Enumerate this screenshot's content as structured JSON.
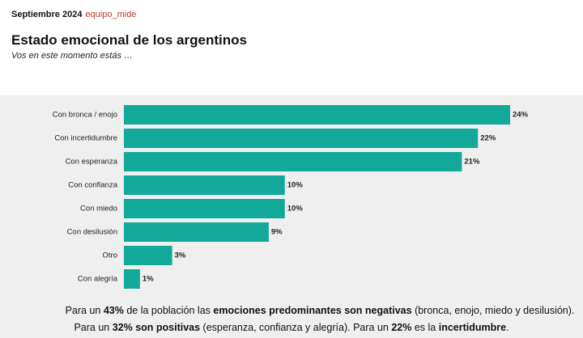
{
  "header": {
    "date": "Septiembre 2024",
    "source": "equipo_mide"
  },
  "chart_data": {
    "type": "bar",
    "orientation": "horizontal",
    "title": "Estado emocional de los argentinos",
    "subtitle": "Vos en este momento estás …",
    "categories": [
      "Con bronca / enojo",
      "Con incertidumbre",
      "Con esperanza",
      "Con confianza",
      "Con miedo",
      "Con desilusión",
      "Otro",
      "Con alegría"
    ],
    "values": [
      24,
      22,
      21,
      10,
      10,
      9,
      3,
      1
    ],
    "value_labels": [
      "24%",
      "22%",
      "21%",
      "10%",
      "10%",
      "9%",
      "3%",
      "1%"
    ],
    "color": "#12a89a"
  },
  "footer": {
    "lines": [
      [
        {
          "text": "Para un "
        },
        {
          "text": "43%",
          "bold": true
        },
        {
          "text": " de la población las "
        },
        {
          "text": "emociones predominantes son negativas",
          "bold": true
        },
        {
          "text": " (bronca, enojo, miedo y desilusión)."
        }
      ],
      [
        {
          "text": "Para un "
        },
        {
          "text": "32% son positivas",
          "bold": true
        },
        {
          "text": " (esperanza, confianza y alegría). Para un "
        },
        {
          "text": "22%",
          "bold": true
        },
        {
          "text": " es la "
        },
        {
          "text": "incertidumbre",
          "bold": true
        },
        {
          "text": "."
        }
      ]
    ]
  }
}
